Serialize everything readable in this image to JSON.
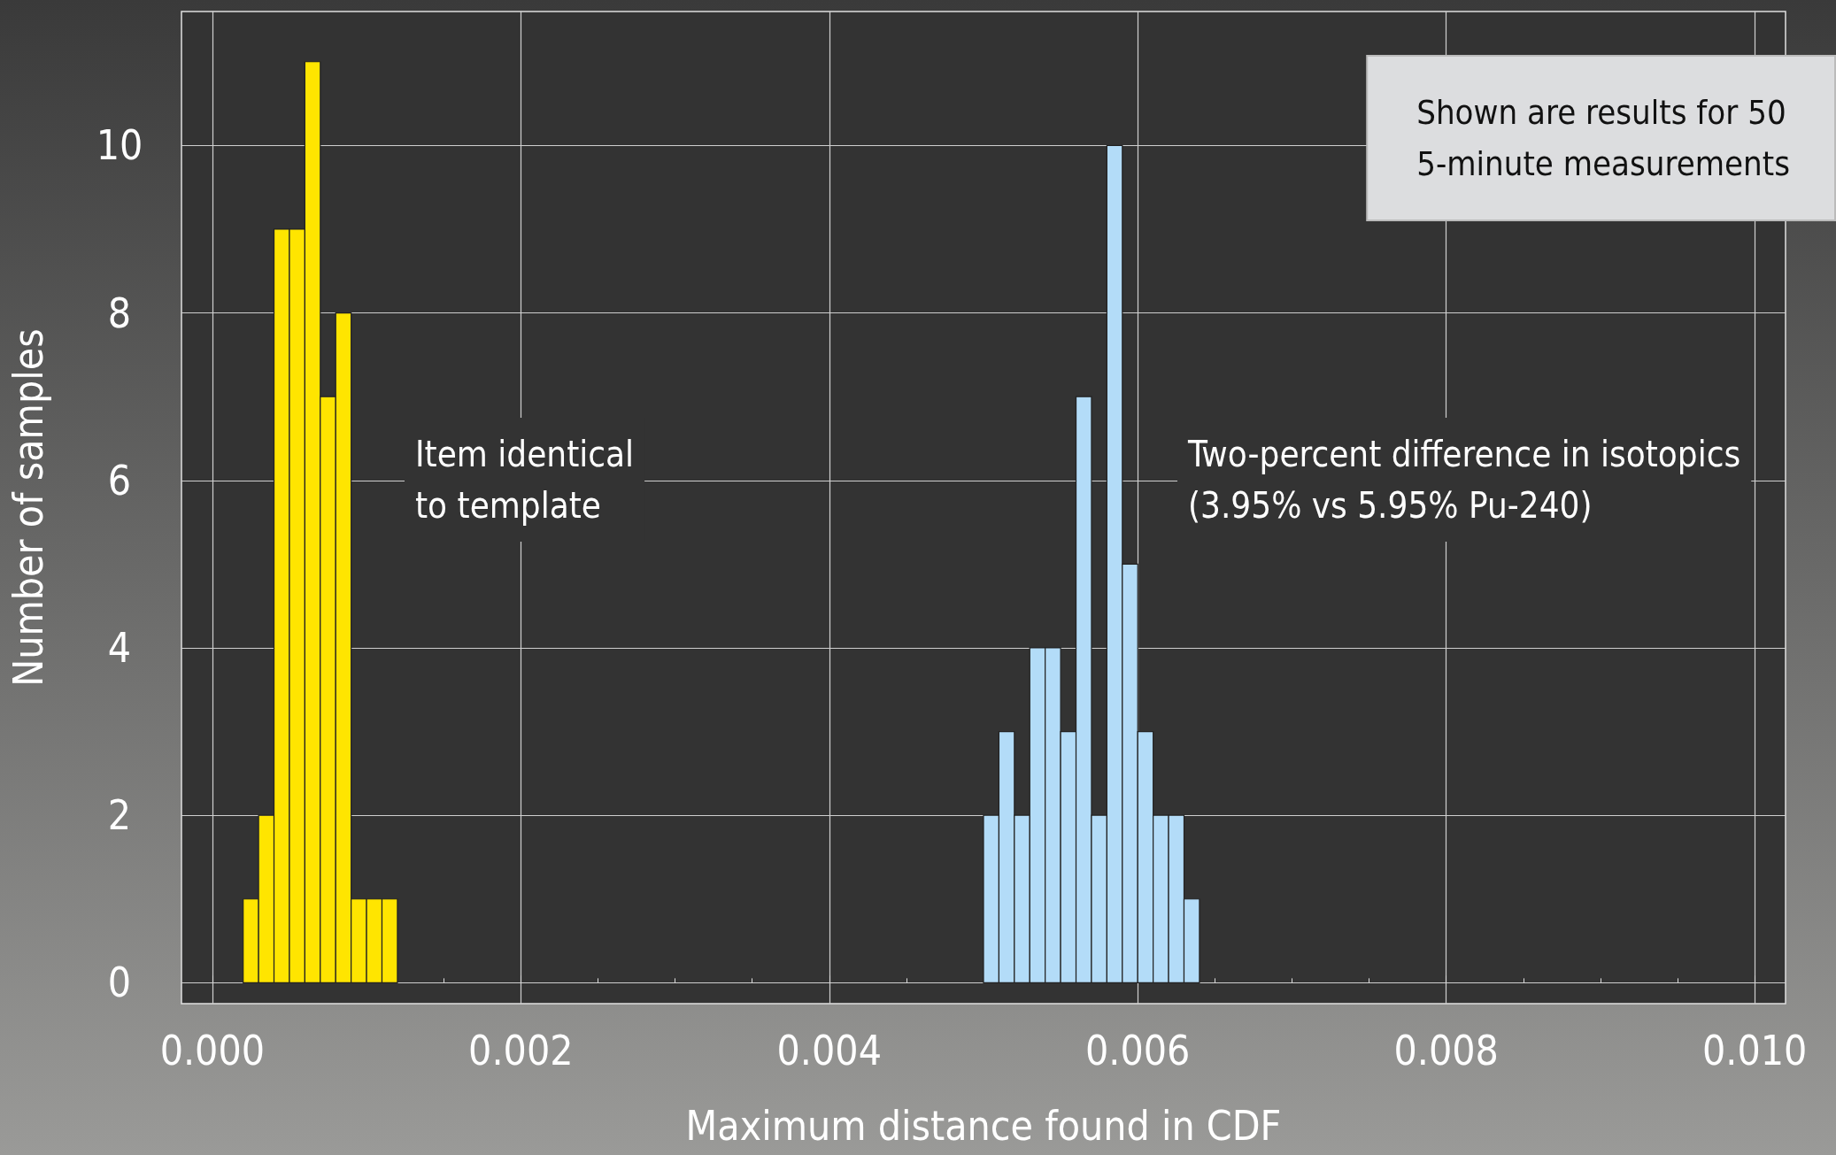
{
  "chart_data": {
    "type": "histogram",
    "xlabel": "Maximum distance found in CDF",
    "ylabel": "Number of samples",
    "bins": [
      0.0002,
      0.0003,
      0.0004,
      0.0005,
      0.0006,
      0.0007,
      0.0008,
      0.0009,
      0.001,
      0.0011,
      0.0012,
      0.0013,
      0.0014,
      0.0015,
      0.0016,
      0.0017,
      0.0018,
      0.0019,
      0.002,
      0.0021,
      0.0022,
      0.0023,
      0.0024,
      0.0025,
      0.0026,
      0.0027,
      0.0028,
      0.0029,
      0.003,
      0.0031,
      0.0032,
      0.0033,
      0.0034,
      0.0035,
      0.0036,
      0.0037,
      0.0038,
      0.0039,
      0.004,
      0.0041,
      0.0042,
      0.0043,
      0.0044,
      0.0045,
      0.0046,
      0.0047,
      0.0048,
      0.0049,
      0.005,
      0.0051,
      0.0052,
      0.0053,
      0.0054,
      0.0055,
      0.0056,
      0.0057,
      0.0058,
      0.0059,
      0.006,
      0.0061,
      0.0062,
      0.0063,
      0.0064
    ],
    "series": [
      {
        "color": "#ffe500",
        "values": [
          1,
          2,
          9,
          9,
          11,
          7,
          8,
          1,
          1,
          1,
          null,
          null,
          null,
          null,
          null,
          null,
          null,
          null,
          null,
          null,
          null,
          null,
          null,
          null,
          null,
          null,
          null,
          null,
          null,
          null,
          null,
          null,
          null,
          null,
          null,
          null,
          null,
          null,
          null,
          null,
          null,
          null,
          null,
          null,
          null,
          null,
          null,
          null,
          null,
          null,
          null,
          null,
          null,
          null,
          null,
          null,
          null,
          null,
          null,
          null,
          null,
          null
        ]
      },
      {
        "color": "#b3dcf8",
        "values": [
          null,
          null,
          null,
          null,
          null,
          null,
          null,
          null,
          null,
          null,
          null,
          null,
          null,
          null,
          null,
          null,
          null,
          null,
          null,
          null,
          null,
          null,
          null,
          null,
          null,
          null,
          null,
          null,
          null,
          null,
          null,
          null,
          null,
          null,
          null,
          null,
          null,
          null,
          null,
          null,
          null,
          null,
          null,
          null,
          null,
          null,
          null,
          null,
          2,
          3,
          2,
          4,
          4,
          3,
          7,
          2,
          10,
          5,
          3,
          2,
          2,
          1
        ]
      }
    ],
    "xlim": [
      -0.0002,
      0.0102
    ],
    "ylim": [
      -0.25,
      11.6
    ],
    "xticks": [
      {
        "value": 0,
        "label": "0.000"
      },
      {
        "value": 0.002,
        "label": "0.002"
      },
      {
        "value": 0.004,
        "label": "0.004"
      },
      {
        "value": 0.006,
        "label": "0.006"
      },
      {
        "value": 0.008,
        "label": "0.008"
      },
      {
        "value": 0.01,
        "label": "0.010"
      }
    ],
    "yticks": [
      0,
      2,
      4,
      6,
      8,
      10
    ],
    "grid": true,
    "annotations": [
      "Item identical\nto template",
      "Two-percent difference in isotopics\n(3.95% vs 5.95% Pu-240)",
      "Shown are results for 50\n5-minute measurements"
    ]
  }
}
